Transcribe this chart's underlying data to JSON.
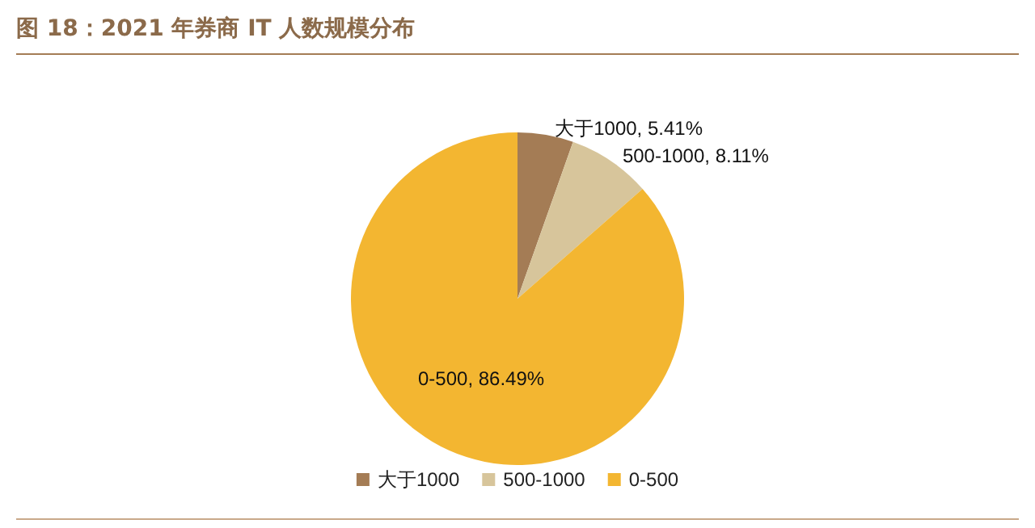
{
  "chart_data": {
    "type": "pie",
    "title": "图 18：2021 年券商 IT 人数规模分布",
    "categories": [
      "大于1000",
      "500-1000",
      "0-500"
    ],
    "values": [
      5.41,
      8.11,
      86.49
    ],
    "colors": [
      "#a47c55",
      "#d7c59b",
      "#f3b631"
    ],
    "value_labels": [
      "大于1000, 5.41%",
      "500-1000, 8.11%",
      "0-500, 86.49%"
    ],
    "legend": "bottom"
  }
}
